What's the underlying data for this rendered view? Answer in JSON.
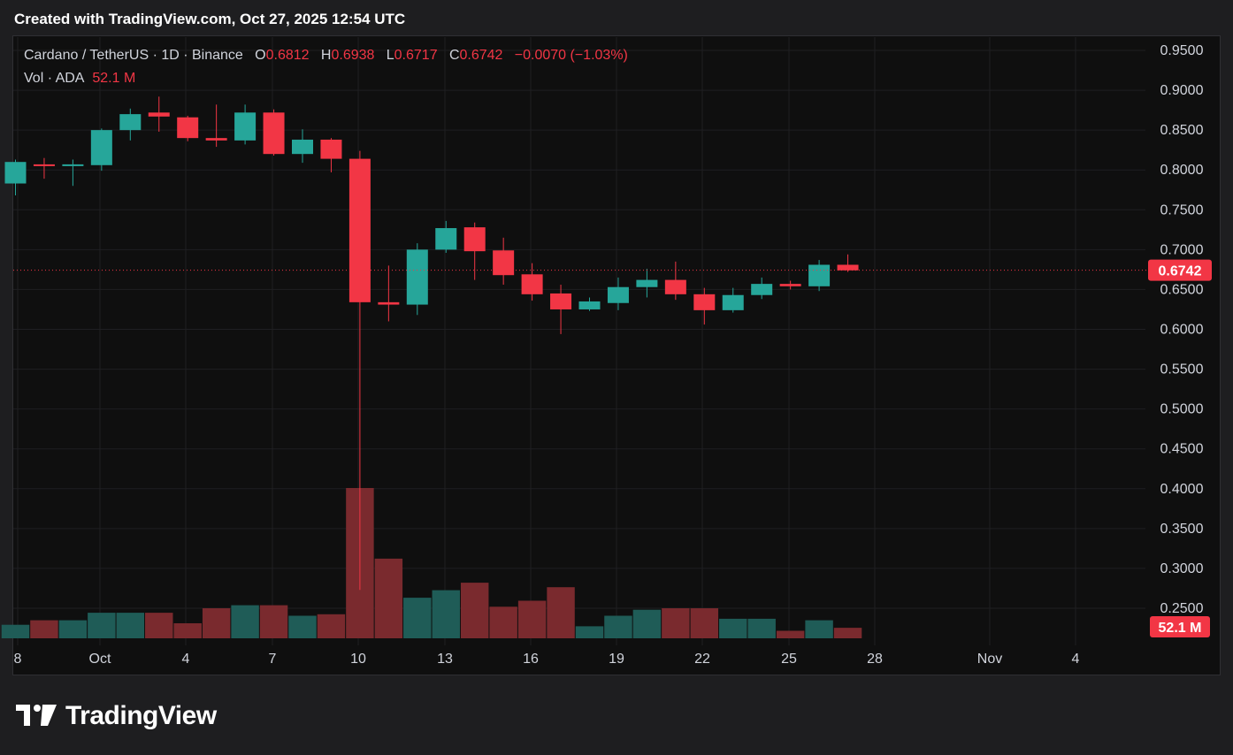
{
  "header": {
    "created_text": "Created with TradingView.com, Oct 27, 2025 12:54 UTC"
  },
  "legend": {
    "symbol": "Cardano / TetherUS · 1D · Binance",
    "o_label": "O",
    "o_value": "0.6812",
    "h_label": "H",
    "h_value": "0.6938",
    "l_label": "L",
    "l_value": "0.6717",
    "c_label": "C",
    "c_value": "0.6742",
    "change": "−0.0070 (−1.03%)",
    "vol_label": "Vol · ADA",
    "vol_value": "52.1 M"
  },
  "price_tag": "0.6742",
  "volume_tag": "52.1 M",
  "footer": {
    "brand": "TradingView"
  },
  "colors": {
    "up": "#26a69a",
    "down": "#f23645",
    "up_vol": "#1f5c57",
    "down_vol": "#7a2a2e",
    "grid": "#1f1f22",
    "axis_text": "#d1d4dc",
    "background": "#0f0f0f"
  },
  "chart_data": {
    "type": "candlestick",
    "y_ticks": [
      "0.9500",
      "0.9000",
      "0.8500",
      "0.8000",
      "0.7500",
      "0.7000",
      "0.6500",
      "0.6000",
      "0.5500",
      "0.5000",
      "0.4500",
      "0.4000",
      "0.3500",
      "0.3000",
      "0.2500"
    ],
    "ylim": [
      0.2,
      0.96
    ],
    "x_ticks": [
      "8",
      "Oct",
      "4",
      "7",
      "10",
      "13",
      "16",
      "19",
      "22",
      "25",
      "28",
      "Nov",
      "4"
    ],
    "last_price": 0.6742,
    "candles": [
      {
        "o": 0.783,
        "h": 0.813,
        "l": 0.768,
        "c": 0.81
      },
      {
        "o": 0.807,
        "h": 0.815,
        "l": 0.789,
        "c": 0.806
      },
      {
        "o": 0.805,
        "h": 0.813,
        "l": 0.78,
        "c": 0.807
      },
      {
        "o": 0.806,
        "h": 0.852,
        "l": 0.799,
        "c": 0.85
      },
      {
        "o": 0.85,
        "h": 0.877,
        "l": 0.837,
        "c": 0.87
      },
      {
        "o": 0.872,
        "h": 0.892,
        "l": 0.848,
        "c": 0.867
      },
      {
        "o": 0.866,
        "h": 0.868,
        "l": 0.836,
        "c": 0.84
      },
      {
        "o": 0.84,
        "h": 0.882,
        "l": 0.829,
        "c": 0.837
      },
      {
        "o": 0.837,
        "h": 0.882,
        "l": 0.832,
        "c": 0.872
      },
      {
        "o": 0.872,
        "h": 0.876,
        "l": 0.818,
        "c": 0.82
      },
      {
        "o": 0.82,
        "h": 0.851,
        "l": 0.809,
        "c": 0.838
      },
      {
        "o": 0.838,
        "h": 0.84,
        "l": 0.797,
        "c": 0.814
      },
      {
        "o": 0.814,
        "h": 0.824,
        "l": 0.273,
        "c": 0.634
      },
      {
        "o": 0.634,
        "h": 0.68,
        "l": 0.61,
        "c": 0.631
      },
      {
        "o": 0.631,
        "h": 0.708,
        "l": 0.618,
        "c": 0.7
      },
      {
        "o": 0.7,
        "h": 0.736,
        "l": 0.696,
        "c": 0.727
      },
      {
        "o": 0.728,
        "h": 0.734,
        "l": 0.662,
        "c": 0.698
      },
      {
        "o": 0.699,
        "h": 0.715,
        "l": 0.656,
        "c": 0.668
      },
      {
        "o": 0.669,
        "h": 0.683,
        "l": 0.636,
        "c": 0.644
      },
      {
        "o": 0.645,
        "h": 0.656,
        "l": 0.594,
        "c": 0.625
      },
      {
        "o": 0.625,
        "h": 0.64,
        "l": 0.623,
        "c": 0.635
      },
      {
        "o": 0.633,
        "h": 0.665,
        "l": 0.624,
        "c": 0.653
      },
      {
        "o": 0.653,
        "h": 0.676,
        "l": 0.64,
        "c": 0.662
      },
      {
        "o": 0.662,
        "h": 0.685,
        "l": 0.637,
        "c": 0.644
      },
      {
        "o": 0.644,
        "h": 0.652,
        "l": 0.606,
        "c": 0.624
      },
      {
        "o": 0.624,
        "h": 0.652,
        "l": 0.621,
        "c": 0.643
      },
      {
        "o": 0.643,
        "h": 0.665,
        "l": 0.638,
        "c": 0.657
      },
      {
        "o": 0.657,
        "h": 0.661,
        "l": 0.65,
        "c": 0.654
      },
      {
        "o": 0.654,
        "h": 0.687,
        "l": 0.648,
        "c": 0.681
      },
      {
        "o": 0.681,
        "h": 0.694,
        "l": 0.672,
        "c": 0.674
      }
    ],
    "volume": {
      "unit": "relative",
      "values": [
        0.09,
        0.12,
        0.12,
        0.17,
        0.17,
        0.17,
        0.1,
        0.2,
        0.22,
        0.22,
        0.15,
        0.16,
        1.0,
        0.53,
        0.27,
        0.32,
        0.37,
        0.21,
        0.25,
        0.34,
        0.08,
        0.15,
        0.19,
        0.2,
        0.2,
        0.13,
        0.13,
        0.05,
        0.12,
        0.07
      ]
    }
  }
}
